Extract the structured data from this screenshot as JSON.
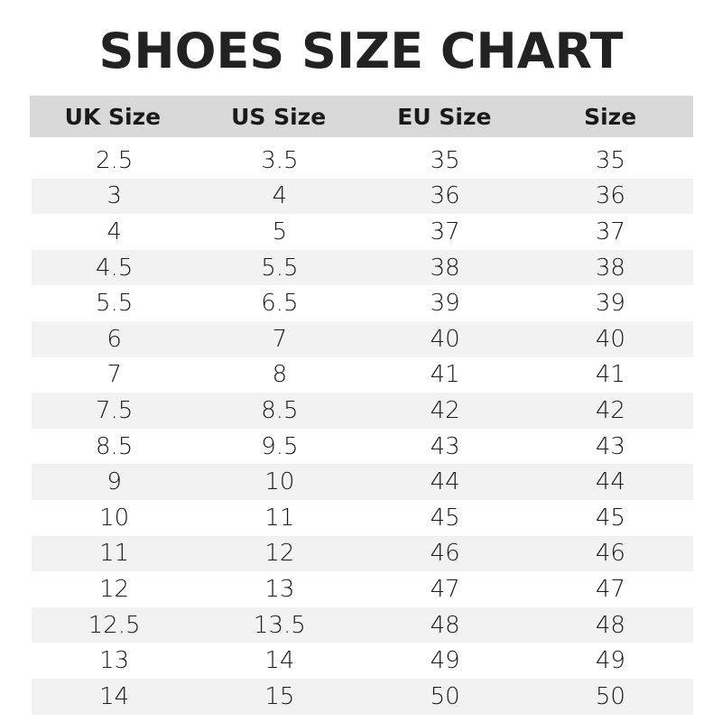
{
  "title": "SHOES SIZE CHART",
  "headers": [
    "UK Size",
    "US Size",
    "EU Size",
    "Size"
  ],
  "colors": {
    "header_bg": "#d9d9d9",
    "stripe_bg": "#f2f2f2",
    "text": "#1a1a1a"
  },
  "rows": [
    [
      "2.5",
      "3.5",
      "35",
      "35"
    ],
    [
      "3",
      "4",
      "36",
      "36"
    ],
    [
      "4",
      "5",
      "37",
      "37"
    ],
    [
      "4.5",
      "5.5",
      "38",
      "38"
    ],
    [
      "5.5",
      "6.5",
      "39",
      "39"
    ],
    [
      "6",
      "7",
      "40",
      "40"
    ],
    [
      "7",
      "8",
      "41",
      "41"
    ],
    [
      "7.5",
      "8.5",
      "42",
      "42"
    ],
    [
      "8.5",
      "9.5",
      "43",
      "43"
    ],
    [
      "9",
      "10",
      "44",
      "44"
    ],
    [
      "10",
      "11",
      "45",
      "45"
    ],
    [
      "11",
      "12",
      "46",
      "46"
    ],
    [
      "12",
      "13",
      "47",
      "47"
    ],
    [
      "12.5",
      "13.5",
      "48",
      "48"
    ],
    [
      "13",
      "14",
      "49",
      "49"
    ],
    [
      "14",
      "15",
      "50",
      "50"
    ]
  ]
}
